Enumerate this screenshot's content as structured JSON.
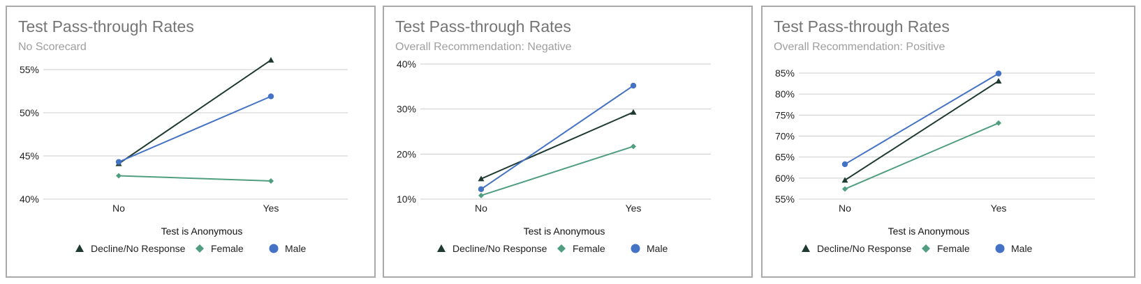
{
  "colors": {
    "decline": "#1e3a2f",
    "female": "#4f9e80",
    "male": "#4472c4",
    "title": "#757575",
    "subtitle": "#9e9e9e",
    "grid": "#cccccc"
  },
  "chart_data": [
    {
      "type": "line",
      "title": "Test Pass-through Rates",
      "subtitle": "No Scorecard",
      "xlabel": "Test is Anonymous",
      "ylabel": "",
      "categories": [
        "No",
        "Yes"
      ],
      "ylim": [
        40,
        55
      ],
      "yticks": [
        40,
        45,
        50,
        55
      ],
      "ytick_labels": [
        "40%",
        "45%",
        "50%",
        "55%"
      ],
      "series": [
        {
          "name": "Decline/No Response",
          "marker": "triangle",
          "values": [
            44.1,
            56.1
          ]
        },
        {
          "name": "Female",
          "marker": "diamond",
          "values": [
            42.7,
            42.1
          ]
        },
        {
          "name": "Male",
          "marker": "circle",
          "values": [
            44.3,
            51.9
          ]
        }
      ]
    },
    {
      "type": "line",
      "title": "Test Pass-through Rates",
      "subtitle": "Overall Recommendation: Negative",
      "xlabel": "Test is Anonymous",
      "ylabel": "",
      "categories": [
        "No",
        "Yes"
      ],
      "ylim": [
        10,
        40
      ],
      "yticks": [
        10,
        20,
        30,
        40
      ],
      "ytick_labels": [
        "10%",
        "20%",
        "30%",
        "40%"
      ],
      "series": [
        {
          "name": "Decline/No Response",
          "marker": "triangle",
          "values": [
            14.5,
            29.3
          ]
        },
        {
          "name": "Female",
          "marker": "diamond",
          "values": [
            10.8,
            21.7
          ]
        },
        {
          "name": "Male",
          "marker": "circle",
          "values": [
            12.2,
            35.2
          ]
        }
      ]
    },
    {
      "type": "line",
      "title": "Test Pass-through Rates",
      "subtitle": "Overall Recommendation: Positive",
      "xlabel": "Test is Anonymous",
      "ylabel": "",
      "categories": [
        "No",
        "Yes"
      ],
      "ylim": [
        55,
        85
      ],
      "yticks": [
        55,
        60,
        65,
        70,
        75,
        80,
        85
      ],
      "ytick_labels": [
        "55%",
        "60%",
        "65%",
        "70%",
        "75%",
        "80%",
        "85%"
      ],
      "series": [
        {
          "name": "Decline/No Response",
          "marker": "triangle",
          "values": [
            59.5,
            83.1
          ]
        },
        {
          "name": "Female",
          "marker": "diamond",
          "values": [
            57.4,
            73.1
          ]
        },
        {
          "name": "Male",
          "marker": "circle",
          "values": [
            63.3,
            84.9
          ]
        }
      ]
    }
  ]
}
